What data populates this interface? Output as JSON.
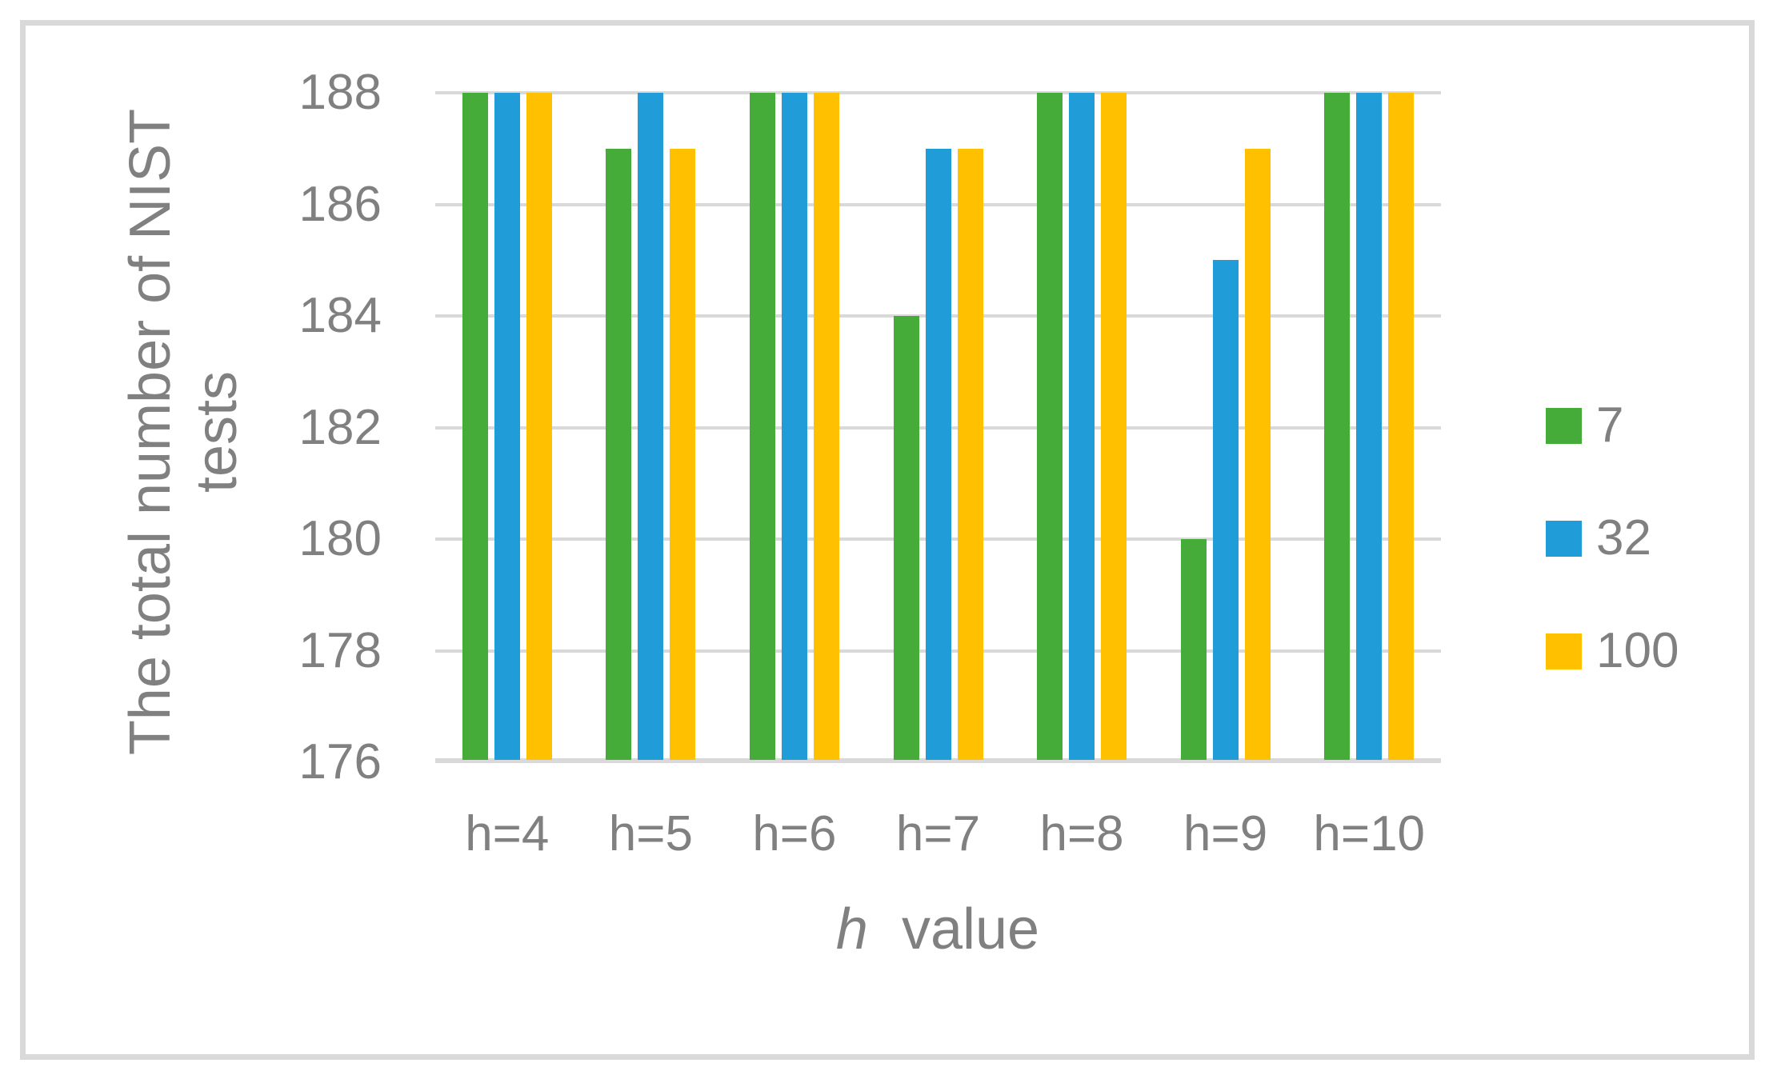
{
  "chart_data": {
    "type": "bar",
    "title": "",
    "categories": [
      "h=4",
      "h=5",
      "h=6",
      "h=7",
      "h=8",
      "h=9",
      "h=10"
    ],
    "series": [
      {
        "name": "7",
        "color": "#45AC3A",
        "values": [
          188,
          187,
          188,
          184,
          188,
          180,
          188
        ]
      },
      {
        "name": "32",
        "color": "#209DD8",
        "values": [
          188,
          188,
          188,
          187,
          188,
          185,
          188
        ]
      },
      {
        "name": "100",
        "color": "#FFC000",
        "values": [
          188,
          187,
          188,
          187,
          188,
          187,
          188
        ]
      }
    ],
    "xlabel_italic": "h",
    "xlabel_rest": "value",
    "ylabel_line1": "The total number of NIST",
    "ylabel_line2": "tests",
    "ylim": [
      176,
      188
    ],
    "yticks": [
      176,
      178,
      180,
      182,
      184,
      186,
      188
    ],
    "grid": true,
    "legend_position": "right",
    "legend_entries": [
      "7",
      "32",
      "100"
    ],
    "colors": {
      "grid": "#D9D9D9",
      "border": "#D9D9D9",
      "text": "#808080",
      "background": "#FFFFFF"
    }
  }
}
